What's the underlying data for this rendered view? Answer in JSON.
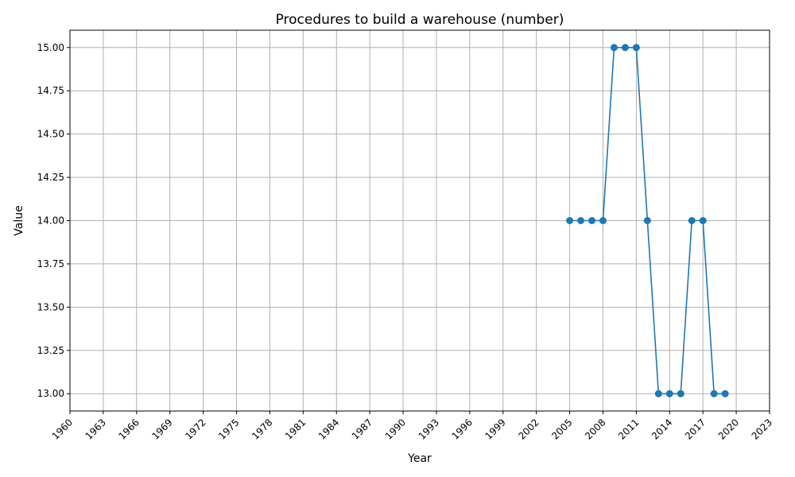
{
  "chart_data": {
    "type": "line",
    "title": "Procedures to build a warehouse (number)",
    "xlabel": "Year",
    "ylabel": "Value",
    "xlim": [
      1960,
      2023
    ],
    "ylim": [
      12.9,
      15.1
    ],
    "x_ticks": [
      1960,
      1963,
      1966,
      1969,
      1972,
      1975,
      1978,
      1981,
      1984,
      1987,
      1990,
      1993,
      1996,
      1999,
      2002,
      2005,
      2008,
      2011,
      2014,
      2017,
      2020,
      2023
    ],
    "y_ticks": [
      "13.00",
      "13.25",
      "13.50",
      "13.75",
      "14.00",
      "14.25",
      "14.50",
      "14.75",
      "15.00"
    ],
    "grid": true,
    "colors": {
      "series": "#1f77b4"
    },
    "series": [
      {
        "name": "",
        "x": [
          2005,
          2006,
          2007,
          2008,
          2009,
          2010,
          2011,
          2012,
          2013,
          2014,
          2015,
          2016,
          2017,
          2018,
          2019
        ],
        "values": [
          14,
          14,
          14,
          14,
          15,
          15,
          15,
          14,
          13,
          13,
          13,
          14,
          14,
          13,
          13
        ]
      }
    ]
  }
}
